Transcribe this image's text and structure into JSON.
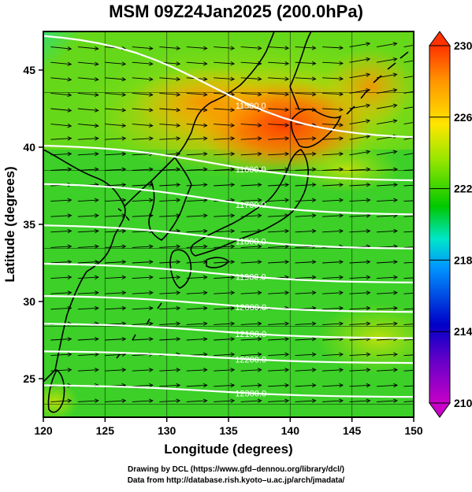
{
  "title": "MSM 09Z24Jan2025 (200.0hPa)",
  "chart_data": {
    "type": "map",
    "xlabel": "Longitude (degrees)",
    "ylabel": "Latitude  (degrees)",
    "xlim": [
      120,
      150
    ],
    "ylim": [
      22.5,
      47.5
    ],
    "xticks": [
      "120",
      "125",
      "130",
      "135",
      "140",
      "145",
      "150"
    ],
    "yticks": [
      "25",
      "30",
      "35",
      "40",
      "45"
    ],
    "shading_variable": "temperature",
    "colorbar": {
      "min": 210,
      "max": 230,
      "labels": [
        "230",
        "226",
        "222",
        "218",
        "214",
        "210"
      ],
      "colors": [
        "#c800c8",
        "#0000c8",
        "#0096ff",
        "#00e6c8",
        "#00c800",
        "#96e600",
        "#ffe600",
        "#ff9600",
        "#ff3200"
      ]
    },
    "contours": [
      {
        "label": "11500.0",
        "lat_west": 47.5,
        "lat_east": 40.5
      },
      {
        "label": "11600.0",
        "lat_west": 40.2,
        "lat_east": 37.8
      },
      {
        "label": "11700.0",
        "lat_west": 37.7,
        "lat_east": 35.6
      },
      {
        "label": "11800.0",
        "lat_west": 35.0,
        "lat_east": 33.4
      },
      {
        "label": "11900.0",
        "lat_west": 32.5,
        "lat_east": 31.2
      },
      {
        "label": "12000.0",
        "lat_west": 30.4,
        "lat_east": 29.3
      },
      {
        "label": "12100.0",
        "lat_west": 28.6,
        "lat_east": 27.6
      },
      {
        "label": "12200.0",
        "lat_west": 26.8,
        "lat_east": 26.0
      },
      {
        "label": "12300.0",
        "lat_west": 24.6,
        "lat_east": 23.8
      }
    ]
  },
  "credits": {
    "line1": "Drawing by DCL (https://www.gfd–dennou.org/library/dcl/)",
    "line2": "Data from http://database.rish.kyoto–u.ac.jp/arch/jmadata/"
  }
}
